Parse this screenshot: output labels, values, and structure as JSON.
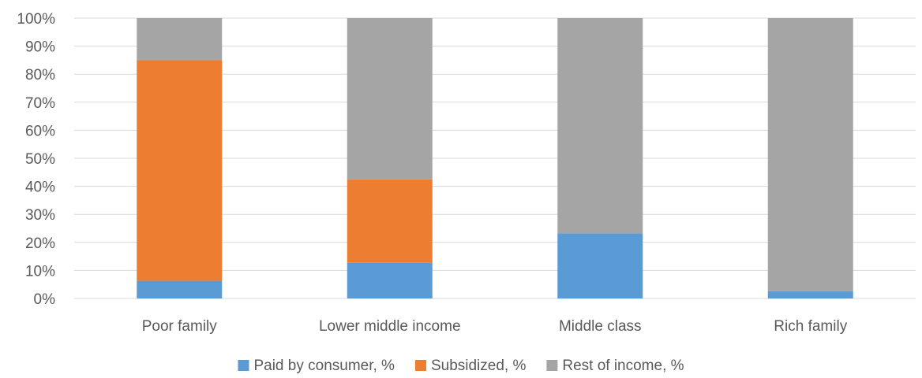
{
  "chart_data": {
    "type": "bar",
    "stacked": "percent",
    "categories": [
      "Poor family",
      "Lower middle income",
      "Middle class",
      "Rich family"
    ],
    "series": [
      {
        "name": "Paid by consumer, %",
        "color": "#5b9bd5",
        "values": [
          6.3,
          12.7,
          23.2,
          2.6
        ]
      },
      {
        "name": "Subsidized, %",
        "color": "#ed7d31",
        "values": [
          78.7,
          29.8,
          0,
          0
        ]
      },
      {
        "name": "Rest of income, %",
        "color": "#a5a5a5",
        "values": [
          15.0,
          57.5,
          76.8,
          97.4
        ]
      }
    ],
    "ylim": [
      0,
      100
    ],
    "yticks": [
      "0%",
      "10%",
      "20%",
      "30%",
      "40%",
      "50%",
      "60%",
      "70%",
      "80%",
      "90%",
      "100%"
    ],
    "grid": true,
    "legend_position": "bottom"
  }
}
